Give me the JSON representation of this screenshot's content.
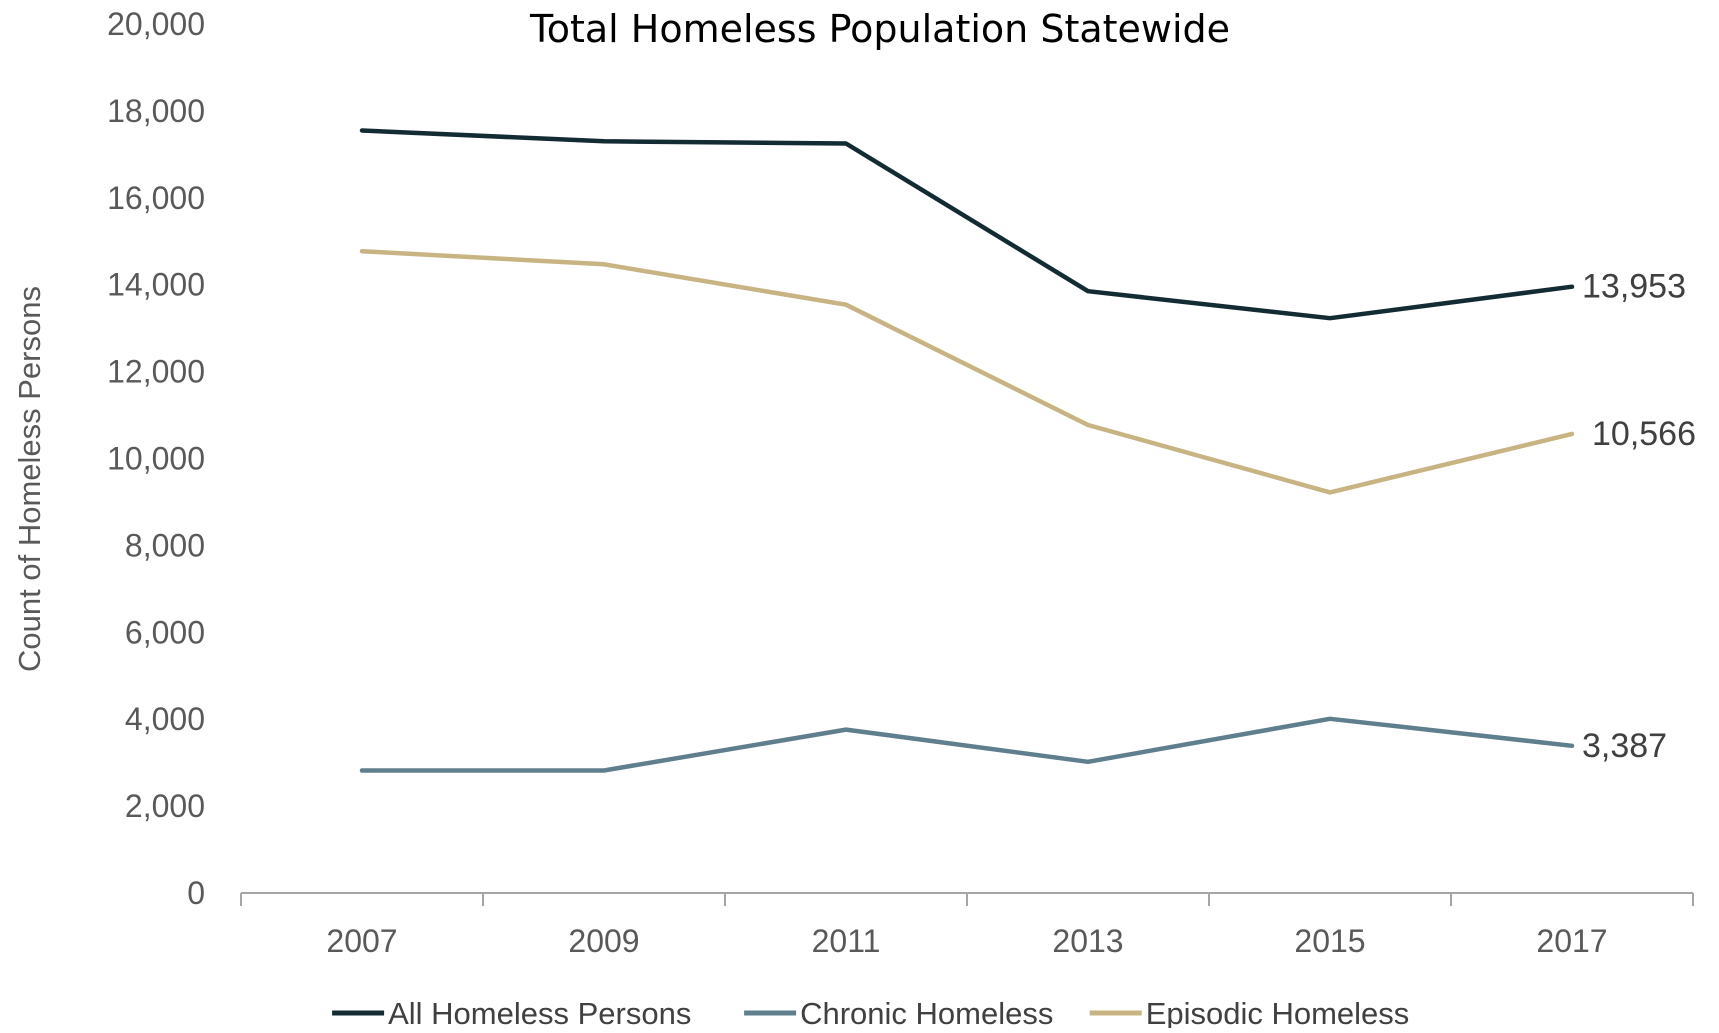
{
  "chart_data": {
    "type": "line",
    "title": "Total Homeless Population Statewide",
    "xlabel": "",
    "ylabel": "Count of Homeless Persons",
    "categories": [
      "2007",
      "2009",
      "2011",
      "2013",
      "2015",
      "2017"
    ],
    "ylim": [
      0,
      20000
    ],
    "yticks": [
      0,
      2000,
      4000,
      6000,
      8000,
      10000,
      12000,
      14000,
      16000,
      18000,
      20000
    ],
    "ytick_labels": [
      "0",
      "2,000",
      "4,000",
      "6,000",
      "8,000",
      "10,000",
      "12,000",
      "14,000",
      "16,000",
      "18,000",
      "20,000"
    ],
    "grid": false,
    "legend_position": "bottom",
    "series": [
      {
        "name": "All Homeless Persons",
        "color": "#132b33",
        "values": [
          17550,
          17300,
          17250,
          13850,
          13230,
          13953
        ],
        "end_label": "13,953"
      },
      {
        "name": "Chronic Homeless",
        "color": "#607f8e",
        "values": [
          2820,
          2820,
          3760,
          3020,
          4010,
          3387
        ],
        "end_label": "3,387"
      },
      {
        "name": "Episodic Homeless",
        "color": "#c8b483",
        "values": [
          14770,
          14470,
          13540,
          10770,
          9220,
          10566
        ],
        "end_label": "10,566"
      }
    ],
    "axis_color": "#a6a6a6"
  }
}
